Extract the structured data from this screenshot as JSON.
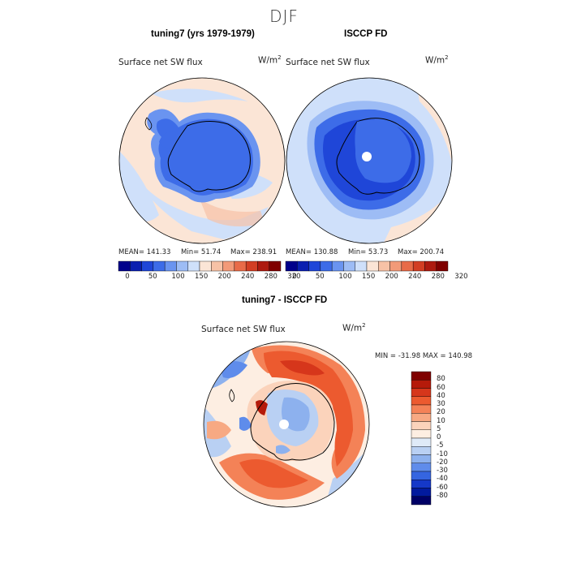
{
  "season": "DJF",
  "panels": {
    "left": {
      "title": "tuning7 (yrs 1979-1979)",
      "variable": "Surface net SW flux",
      "units_base": "W/m",
      "units_exp": "2",
      "stats": {
        "mean": "MEAN= 141.33",
        "min": "Min=  51.74",
        "max": "Max= 238.91"
      }
    },
    "right": {
      "title": "ISCCP FD",
      "variable": "Surface net SW flux",
      "units_base": "W/m",
      "units_exp": "2",
      "stats": {
        "mean": "MEAN= 130.88",
        "min": "Min=  53.73",
        "max": "Max= 200.74"
      }
    },
    "diff": {
      "title": "tuning7 - ISCCP FD",
      "variable": "Surface net SW flux",
      "units_base": "W/m",
      "units_exp": "2",
      "minmax": "MIN = -31.98 MAX = 140.98"
    }
  },
  "abs_colorbar": {
    "colors": [
      "#00008b",
      "#0a1fb0",
      "#1f46d8",
      "#3d6ce8",
      "#6a94f0",
      "#9dbcf5",
      "#cfe0fa",
      "#fbe5d6",
      "#f7c2a6",
      "#f29a78",
      "#e86b48",
      "#d23e23",
      "#ad1a0f",
      "#7f0000"
    ],
    "labels": [
      "0",
      "50",
      "100",
      "150",
      "200",
      "240",
      "280",
      "320"
    ]
  },
  "diff_colorbar": {
    "colors": [
      "#7f0000",
      "#b51a0a",
      "#d6361b",
      "#ec5a2f",
      "#f48257",
      "#f7a983",
      "#fbd3bb",
      "#fdeee2",
      "#dfeaf8",
      "#b9d0f3",
      "#8db1ee",
      "#5f8ceb",
      "#3565e0",
      "#1538c8",
      "#021a9e",
      "#000066"
    ],
    "labels": [
      "80",
      "60",
      "40",
      "30",
      "20",
      "10",
      "5",
      "0",
      "-5",
      "-10",
      "-20",
      "-30",
      "-40",
      "-60",
      "-80"
    ]
  }
}
